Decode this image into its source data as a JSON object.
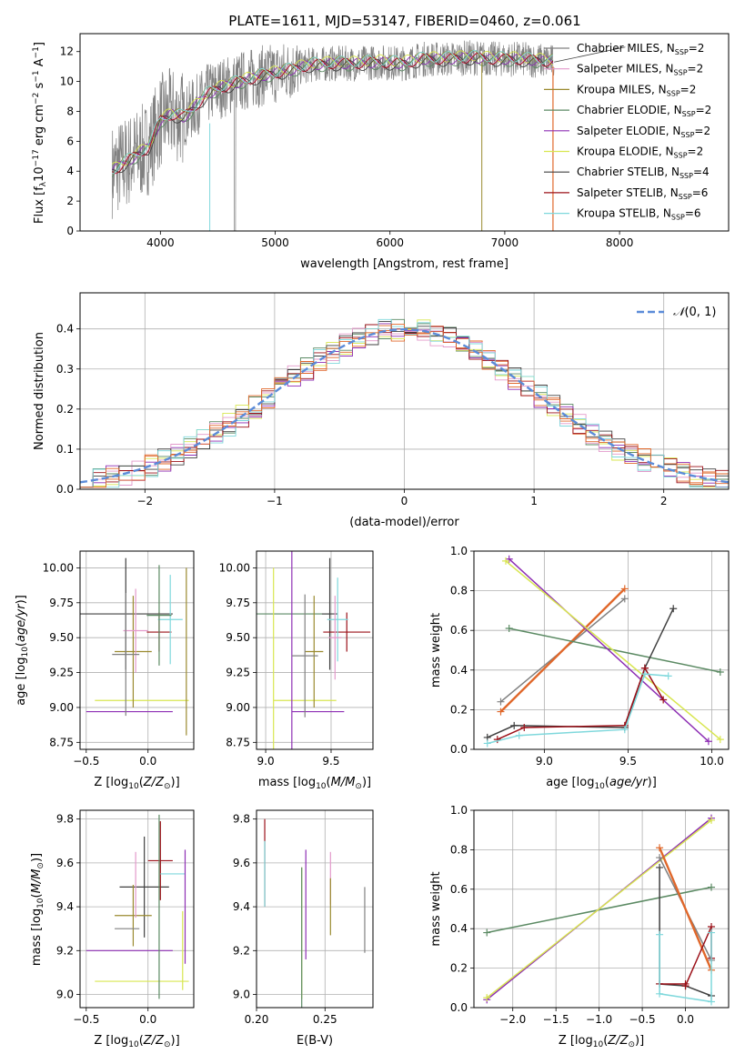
{
  "figure_title": "PLATE=1611, MJD=53147, FIBERID=0460, z=0.061",
  "series_colors": [
    "#808080",
    "#e39acb",
    "#9a8a2f",
    "#5b8a63",
    "#8e2fb4",
    "#d8e650",
    "#404040",
    "#9b1018",
    "#7fd8dc"
  ],
  "series_labels": [
    "Chabrier MILES, N_SSP=2",
    "Salpeter MILES, N_SSP=2",
    "Kroupa MILES, N_SSP=2",
    "Chabrier ELODIE, N_SSP=2",
    "Salpeter ELODIE, N_SSP=2",
    "Kroupa ELODIE, N_SSP=2",
    "Chabrier STELIB, N_SSP=4",
    "Salpeter STELIB, N_SSP=6",
    "Kroupa STELIB, N_SSP=6"
  ],
  "chart_data": [
    {
      "type": "line",
      "panel": "spectrum",
      "xlabel": "wavelength [Angstrom, rest frame]",
      "ylabel": "Flux [f_λ 10^-17 erg cm^-2 s^-1 A^-1]",
      "xlim": [
        3300,
        8950
      ],
      "ylim": [
        0,
        13.2
      ],
      "xticks": [
        4000,
        5000,
        6000,
        7000,
        8000
      ],
      "yticks": [
        0,
        2,
        4,
        6,
        8,
        10,
        12
      ],
      "grid": false,
      "legend": "right",
      "spectrum_anchor_x": [
        3580,
        3700,
        3800,
        3900,
        4000,
        4100,
        4200,
        4300,
        4400,
        4500,
        4700,
        4900,
        5100,
        5300,
        5500,
        5700,
        5900,
        6100,
        6300,
        6500,
        6700,
        6900,
        7100,
        7300,
        7430
      ],
      "spectrum_anchor_y": [
        4.0,
        4.6,
        5.1,
        5.6,
        7.4,
        7.8,
        7.6,
        8.3,
        9.1,
        9.5,
        10.0,
        10.4,
        10.7,
        11.1,
        11.2,
        11.2,
        11.3,
        11.2,
        11.5,
        11.5,
        11.6,
        11.5,
        11.5,
        11.4,
        11.3
      ],
      "model_end_x": 8050,
      "model_end_y": 12.3
    },
    {
      "type": "histogram",
      "panel": "residuals",
      "xlabel": "(data-model)/error",
      "ylabel": "Normed distribution",
      "xlim": [
        -2.5,
        2.5
      ],
      "ylim": [
        0,
        0.49
      ],
      "xticks": [
        -2,
        -1,
        0,
        1,
        2
      ],
      "yticks": [
        0,
        0.1,
        0.2,
        0.3,
        0.4
      ],
      "grid": true,
      "legend": "top-right",
      "reference_curve": "N(0,1)",
      "bin_width": 0.1
    },
    {
      "type": "errorbar",
      "panel": "age_vs_Z",
      "xlabel": "Z [log10(Z/Z☉)]",
      "ylabel": "age  [log10(age/yr)]",
      "xlim": [
        -0.55,
        0.37
      ],
      "ylim": [
        8.7,
        10.12
      ],
      "xticks": [
        -0.5,
        0.0
      ],
      "yticks": [
        8.75,
        9.0,
        9.25,
        9.5,
        9.75,
        10.0
      ],
      "grid": true,
      "points": [
        {
          "s": 6,
          "x": -0.18,
          "xerr": 0.38,
          "y": 9.67,
          "yerr": 0.4
        },
        {
          "s": 7,
          "x": 0.09,
          "xerr": 0.1,
          "y": 9.54,
          "yerr": 0.14
        },
        {
          "s": 8,
          "x": 0.18,
          "xerr": 0.1,
          "y": 9.63,
          "yerr": 0.32
        },
        {
          "s": 5,
          "x": -0.05,
          "xerr": 0.38,
          "y": 9.05,
          "yerr": 0.0
        },
        {
          "s": 4,
          "x": -0.15,
          "xerr": 0.35,
          "y": 8.97,
          "yerr": 0.0
        },
        {
          "s": 3,
          "x": 0.09,
          "xerr": 0.1,
          "y": 9.66,
          "yerr": 0.36
        },
        {
          "s": 2,
          "x": -0.12,
          "xerr": 0.15,
          "y": 9.4,
          "yerr": 0.4
        },
        {
          "s": 1,
          "x": -0.1,
          "xerr": 0.1,
          "y": 9.55,
          "yerr": 0.3
        },
        {
          "s": 0,
          "x": -0.18,
          "xerr": 0.11,
          "y": 9.38,
          "yerr": 0.44
        },
        {
          "s": 2,
          "x": 0.31,
          "xerr": 0.0,
          "y": 9.4,
          "yerr": 0.6
        }
      ]
    },
    {
      "type": "errorbar",
      "panel": "age_vs_mass",
      "xlabel": "mass [log10(M/M☉)]",
      "ylabel": "",
      "xlim": [
        8.93,
        9.82
      ],
      "ylim": [
        8.7,
        10.12
      ],
      "xticks": [
        9.0,
        9.5
      ],
      "yticks": [
        8.75,
        9.0,
        9.25,
        9.5,
        9.75,
        10.0
      ],
      "grid": true,
      "points": [
        {
          "s": 3,
          "x": 9.2,
          "xerr": 0.3,
          "y": 9.67,
          "yerr": 0.0
        },
        {
          "s": 6,
          "x": 9.49,
          "xerr": 0.06,
          "y": 9.67,
          "yerr": 0.4
        },
        {
          "s": 7,
          "x": 9.62,
          "xerr": 0.18,
          "y": 9.54,
          "yerr": 0.14
        },
        {
          "s": 8,
          "x": 9.55,
          "xerr": 0.08,
          "y": 9.63,
          "yerr": 0.3
        },
        {
          "s": 5,
          "x": 9.06,
          "xerr": 0.0,
          "y": 9.3,
          "yerr": 0.7
        },
        {
          "s": 5,
          "x": 9.3,
          "xerr": 0.24,
          "y": 9.05,
          "yerr": 0.0
        },
        {
          "s": 4,
          "x": 9.2,
          "xerr": 0.0,
          "y": 9.5,
          "yerr": 0.82
        },
        {
          "s": 4,
          "x": 9.4,
          "xerr": 0.2,
          "y": 8.97,
          "yerr": 0.0
        },
        {
          "s": 2,
          "x": 9.37,
          "xerr": 0.07,
          "y": 9.4,
          "yerr": 0.4
        },
        {
          "s": 1,
          "x": 9.53,
          "xerr": 0.05,
          "y": 9.5,
          "yerr": 0.3
        },
        {
          "s": 0,
          "x": 9.3,
          "xerr": 0.1,
          "y": 9.37,
          "yerr": 0.44
        }
      ]
    },
    {
      "type": "line",
      "panel": "weight_vs_age",
      "xlabel": "age  [log10(age/yr)]",
      "ylabel": "mass weight",
      "xlim": [
        8.58,
        10.1
      ],
      "ylim": [
        0,
        1.0
      ],
      "xticks": [
        9.0,
        9.5,
        10.0
      ],
      "yticks": [
        0.0,
        0.2,
        0.4,
        0.6,
        0.8,
        1.0
      ],
      "grid": true,
      "series": [
        {
          "s": 0,
          "x": [
            8.74,
            9.48
          ],
          "y": [
            0.24,
            0.76
          ]
        },
        {
          "s": 2,
          "x": [
            8.74,
            9.48
          ],
          "y": [
            0.19,
            0.81
          ]
        },
        {
          "s": 3,
          "x": [
            8.79,
            10.05
          ],
          "y": [
            0.61,
            0.39
          ]
        },
        {
          "s": 4,
          "x": [
            8.79,
            9.98
          ],
          "y": [
            0.96,
            0.04
          ]
        },
        {
          "s": 5,
          "x": [
            8.77,
            10.05
          ],
          "y": [
            0.95,
            0.05
          ]
        },
        {
          "s": 6,
          "x": [
            8.66,
            8.82,
            9.48,
            9.6,
            9.77
          ],
          "y": [
            0.06,
            0.12,
            0.11,
            0.41,
            0.71
          ]
        },
        {
          "s": 7,
          "x": [
            8.72,
            8.88,
            9.48,
            9.6,
            9.71
          ],
          "y": [
            0.05,
            0.11,
            0.12,
            0.41,
            0.25
          ]
        },
        {
          "s": 8,
          "x": [
            8.66,
            8.85,
            9.48,
            9.6,
            9.74
          ],
          "y": [
            0.03,
            0.07,
            0.1,
            0.38,
            0.37
          ]
        }
      ]
    },
    {
      "type": "errorbar",
      "panel": "mass_vs_Z",
      "xlabel": "Z [log10(Z/Z☉)]",
      "ylabel": "mass [log10(M/M☉)]",
      "xlim": [
        -0.55,
        0.37
      ],
      "ylim": [
        8.94,
        9.84
      ],
      "xticks": [
        -0.5,
        0.0
      ],
      "yticks": [
        9.0,
        9.2,
        9.4,
        9.6,
        9.8
      ],
      "grid": true,
      "points": [
        {
          "s": 6,
          "x": -0.03,
          "xerr": 0.2,
          "y": 9.49,
          "yerr": 0.23
        },
        {
          "s": 7,
          "x": 0.1,
          "xerr": 0.1,
          "y": 9.61,
          "yerr": 0.18
        },
        {
          "s": 8,
          "x": 0.2,
          "xerr": 0.1,
          "y": 9.55,
          "yerr": 0.0
        },
        {
          "s": 5,
          "x": -0.05,
          "xerr": 0.38,
          "y": 9.06,
          "yerr": 0.0
        },
        {
          "s": 5,
          "x": 0.28,
          "xerr": 0.0,
          "y": 9.2,
          "yerr": 0.18
        },
        {
          "s": 4,
          "x": -0.15,
          "xerr": 0.35,
          "y": 9.2,
          "yerr": 0.0
        },
        {
          "s": 4,
          "x": 0.3,
          "xerr": 0.0,
          "y": 9.4,
          "yerr": 0.26
        },
        {
          "s": 3,
          "x": 0.09,
          "xerr": 0.0,
          "y": 9.4,
          "yerr": 0.42
        },
        {
          "s": 2,
          "x": -0.12,
          "xerr": 0.15,
          "y": 9.36,
          "yerr": 0.14
        },
        {
          "s": 1,
          "x": -0.1,
          "xerr": 0.0,
          "y": 9.5,
          "yerr": 0.15
        },
        {
          "s": 0,
          "x": -0.17,
          "xerr": 0.1,
          "y": 9.3,
          "yerr": 0.0
        }
      ]
    },
    {
      "type": "errorbar",
      "panel": "mass_vs_ebv",
      "xlabel": "E(B-V)",
      "ylabel": "",
      "xlim": [
        0.2,
        0.285
      ],
      "ylim": [
        8.94,
        9.84
      ],
      "xticks": [
        0.2,
        0.25
      ],
      "yticks": [
        9.0,
        9.2,
        9.4,
        9.6,
        9.8
      ],
      "grid": true,
      "points": [
        {
          "s": 7,
          "x": 0.206,
          "xerr": 0.0,
          "y": 9.6,
          "yerr": 0.2
        },
        {
          "s": 8,
          "x": 0.206,
          "xerr": 0.0,
          "y": 9.55,
          "yerr": 0.15
        },
        {
          "s": 5,
          "x": 0.233,
          "xerr": 0.0,
          "y": 9.28,
          "yerr": 0.3
        },
        {
          "s": 3,
          "x": 0.233,
          "xerr": 0.0,
          "y": 9.25,
          "yerr": 0.33
        },
        {
          "s": 4,
          "x": 0.236,
          "xerr": 0.0,
          "y": 9.41,
          "yerr": 0.25
        },
        {
          "s": 1,
          "x": 0.254,
          "xerr": 0.0,
          "y": 9.53,
          "yerr": 0.12
        },
        {
          "s": 2,
          "x": 0.254,
          "xerr": 0.0,
          "y": 9.4,
          "yerr": 0.13
        },
        {
          "s": 0,
          "x": 0.279,
          "xerr": 0.0,
          "y": 9.34,
          "yerr": 0.15
        }
      ]
    },
    {
      "type": "line",
      "panel": "weight_vs_Z",
      "xlabel": "Z [log10(Z/Z☉)]",
      "ylabel": "mass weight",
      "xlim": [
        -2.45,
        0.5
      ],
      "ylim": [
        0,
        1.0
      ],
      "xticks": [
        -2.0,
        -1.5,
        -1.0,
        -0.5,
        0.0
      ],
      "yticks": [
        0.0,
        0.2,
        0.4,
        0.6,
        0.8,
        1.0
      ],
      "grid": true,
      "series": [
        {
          "s": 3,
          "x": [
            -2.3,
            0.3
          ],
          "y": [
            0.38,
            0.61
          ]
        },
        {
          "s": 4,
          "x": [
            -2.3,
            0.3
          ],
          "y": [
            0.04,
            0.96
          ]
        },
        {
          "s": 5,
          "x": [
            -2.3,
            0.3
          ],
          "y": [
            0.05,
            0.95
          ]
        },
        {
          "s": 0,
          "x": [
            -0.3,
            0.3
          ],
          "y": [
            0.76,
            0.24
          ]
        },
        {
          "s": 2,
          "x": [
            -0.3,
            0.3
          ],
          "y": [
            0.81,
            0.19
          ]
        },
        {
          "s": 6,
          "x": [
            -0.3,
            -0.3,
            0.0,
            0.3
          ],
          "y": [
            0.71,
            0.12,
            0.11,
            0.06
          ]
        },
        {
          "s": 7,
          "x": [
            -0.3,
            0.0,
            0.0,
            0.3,
            0.3
          ],
          "y": [
            0.12,
            0.12,
            0.11,
            0.41,
            0.25
          ]
        },
        {
          "s": 8,
          "x": [
            -0.3,
            -0.3,
            0.3,
            0.3
          ],
          "y": [
            0.37,
            0.07,
            0.03,
            0.38
          ]
        }
      ]
    }
  ]
}
